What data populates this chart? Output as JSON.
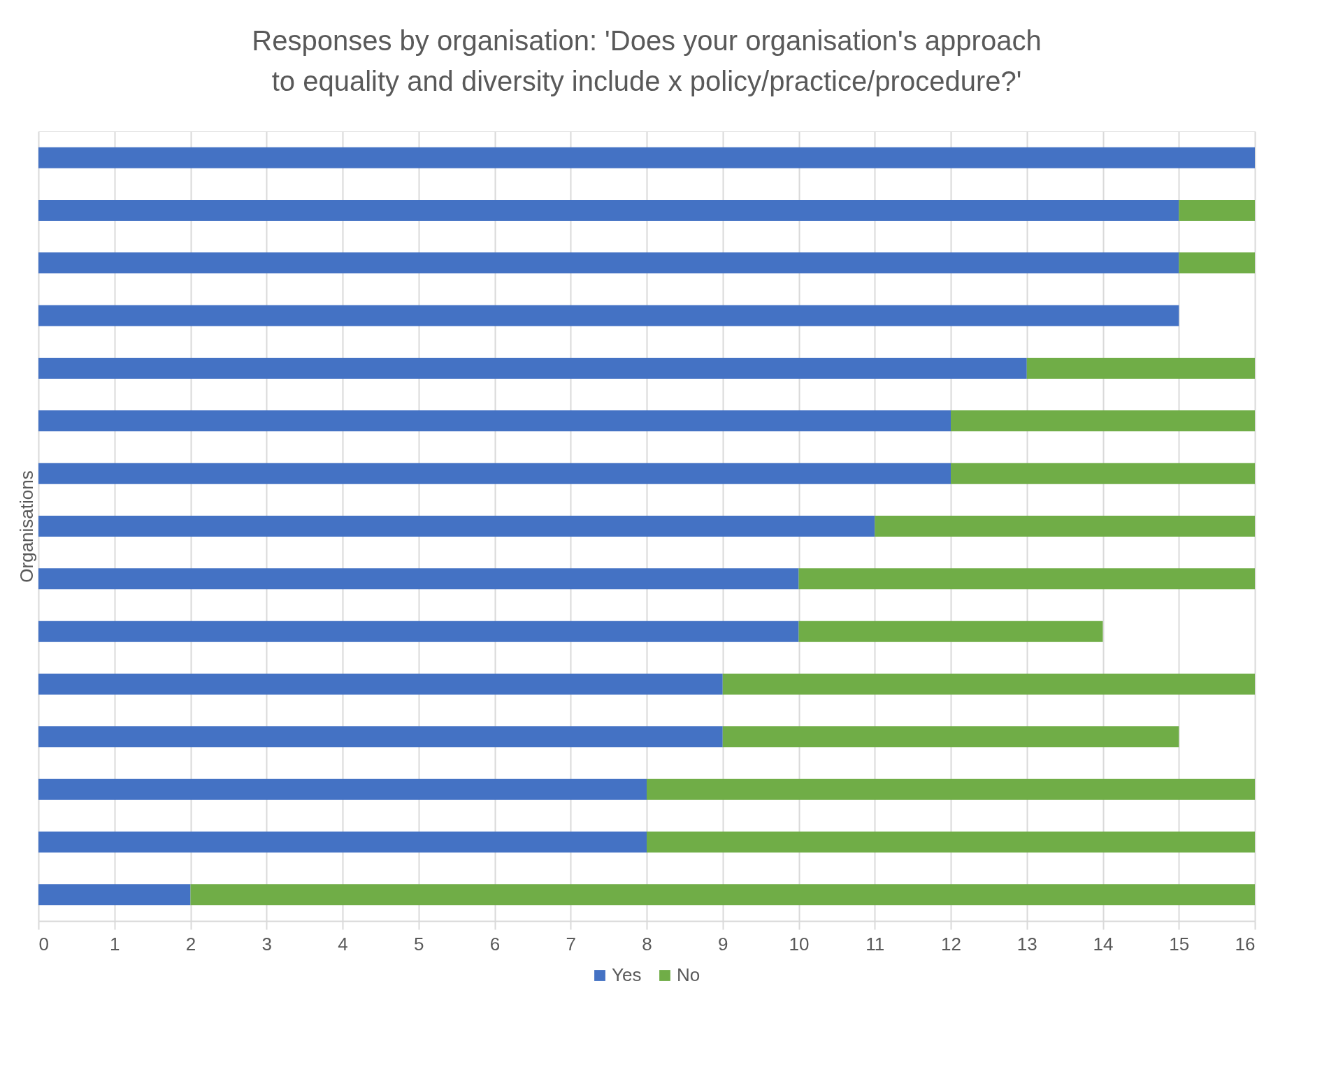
{
  "chart_data": {
    "type": "bar",
    "orientation": "horizontal",
    "stacked": true,
    "title": "Responses by organisation: 'Does your organisation's approach to equality and diversity include x policy/practice/procedure?'",
    "ylabel": "Organisations",
    "categories": [
      null,
      null,
      null,
      null,
      null,
      null,
      null,
      null,
      null,
      null,
      null,
      null,
      null,
      null,
      null
    ],
    "series": [
      {
        "name": "Yes",
        "color": "#4472c4",
        "values": [
          16,
          15,
          15,
          15,
          13,
          12,
          12,
          11,
          10,
          10,
          9,
          9,
          8,
          8,
          2
        ]
      },
      {
        "name": "No",
        "color": "#70ad47",
        "values": [
          0,
          1,
          1,
          0,
          3,
          4,
          4,
          5,
          6,
          4,
          7,
          6,
          8,
          8,
          14
        ]
      }
    ],
    "xlim": [
      0,
      16
    ],
    "xticks": [
      0,
      1,
      2,
      3,
      4,
      5,
      6,
      7,
      8,
      9,
      10,
      11,
      12,
      13,
      14,
      15,
      16
    ],
    "grid": "x",
    "legend": "bottom",
    "tick_labels": "x"
  }
}
